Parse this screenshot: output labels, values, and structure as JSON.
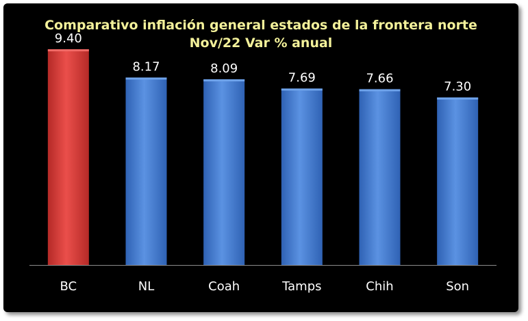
{
  "chart_data": {
    "type": "bar",
    "title": "Comparativo inflación general estados de la frontera norte",
    "subtitle": "Nov/22 Var % anual",
    "categories": [
      "BC",
      "NL",
      "Coah",
      "Tamps",
      "Chih",
      "Son"
    ],
    "values": [
      9.4,
      8.17,
      8.09,
      7.69,
      7.66,
      7.3
    ],
    "value_labels": [
      "9.40",
      "8.17",
      "8.09",
      "7.69",
      "7.66",
      "7.30"
    ],
    "highlight_index": 0,
    "xlabel": "",
    "ylabel": "",
    "ylim": [
      0,
      10.0
    ],
    "grid": false,
    "legend": "none"
  },
  "colors": {
    "background": "#000000",
    "title": "#f3f19a",
    "highlight_bar": "#d93a37",
    "highlight_bar_light": "#f06a66",
    "bar": "#3f7ad0",
    "bar_light": "#6fa3ea",
    "axis": "#8c8c8c",
    "label": "#ffffff"
  }
}
